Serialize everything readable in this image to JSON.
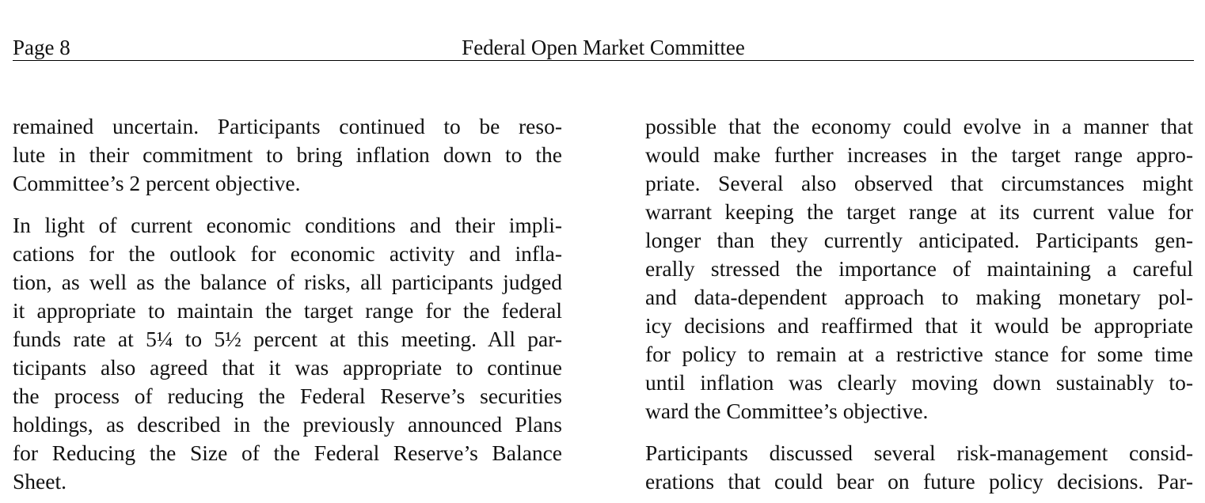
{
  "header": {
    "page_number": "Page 8",
    "title": "Federal Open Market Committee"
  },
  "left_column": {
    "paragraphs": [
      {
        "lines": [
          "remained uncertain.  Participants continued to be reso-",
          "lute in their commitment to bring inflation down to the",
          "Committee’s 2 percent objective."
        ]
      },
      {
        "lines": [
          "In light of current economic conditions and their impli-",
          "cations for the outlook for economic activity and infla-",
          "tion, as well as the balance of risks, all participants judged",
          "it appropriate to maintain the target range for the federal",
          "funds rate at 5¼ to 5½ percent at this meeting.  All par-",
          "ticipants also agreed that it was appropriate to continue",
          "the process of reducing the Federal Reserve’s securities",
          "holdings, as described in the previously announced Plans",
          "for Reducing the Size of the Federal Reserve’s Balance",
          "Sheet."
        ]
      }
    ]
  },
  "right_column": {
    "paragraphs": [
      {
        "lines": [
          "possible that the economy could evolve in a manner that",
          "would make further increases in the target range appro-",
          "priate.  Several also observed that circumstances might",
          "warrant keeping the target range at its current value for",
          "longer than they currently anticipated.  Participants gen-",
          "erally stressed the importance of maintaining a careful",
          "and data-dependent approach to making monetary pol-",
          "icy decisions and reaffirmed that it would be appropriate",
          "for policy to remain at a restrictive stance for some time",
          "until inflation was clearly moving down sustainably to-",
          "ward the Committee’s objective."
        ]
      },
      {
        "lines": [
          "Participants discussed several risk-management consid-",
          "erations that could bear on future policy decisions.  Par-"
        ]
      }
    ]
  }
}
